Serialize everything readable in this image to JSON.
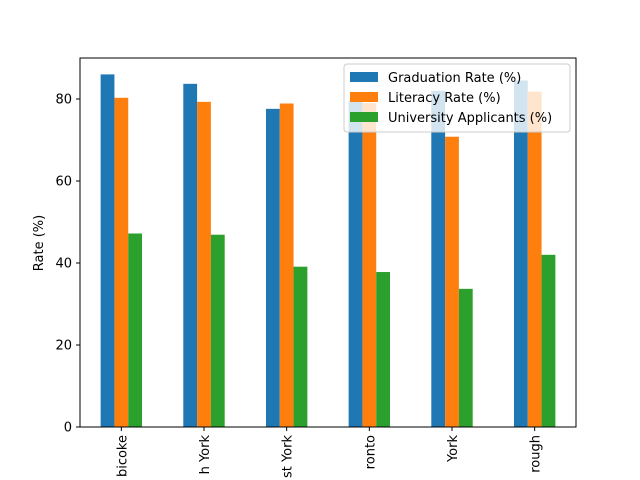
{
  "chart_data": {
    "type": "bar",
    "title": "",
    "xlabel": "",
    "ylabel": "Rate (%)",
    "ylim": [
      0,
      90
    ],
    "yticks": [
      0,
      20,
      40,
      60,
      80
    ],
    "grid": false,
    "legend_position": "top-right",
    "categories": [
      "Etobicoke",
      "North York",
      "East York",
      "Toronto",
      "York",
      "Scarborough"
    ],
    "visible_category_labels": [
      "bicoke",
      "h York",
      "st York",
      "ronto",
      "York",
      "rough"
    ],
    "series": [
      {
        "name": "Graduation Rate (%)",
        "color": "#1f77b4",
        "values": [
          86.0,
          83.7,
          77.6,
          79.5,
          82.0,
          84.5
        ]
      },
      {
        "name": "Literacy Rate (%)",
        "color": "#ff7f0e",
        "values": [
          80.3,
          79.3,
          78.9,
          79.0,
          70.8,
          81.8
        ]
      },
      {
        "name": "University Applicants (%)",
        "color": "#2ca02c",
        "values": [
          47.2,
          46.9,
          39.1,
          37.8,
          33.7,
          42.0
        ]
      }
    ]
  }
}
